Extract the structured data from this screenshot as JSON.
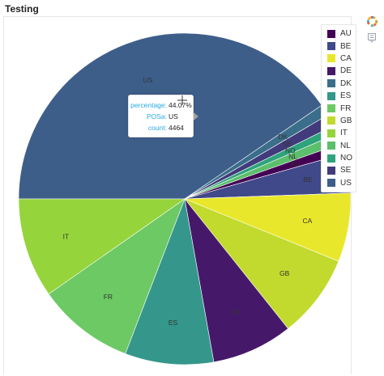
{
  "title": "Testing",
  "chart_data": {
    "type": "pie",
    "start_angle_deg": 180,
    "direction": "clockwise",
    "slices": [
      {
        "label": "US",
        "percentage": 44.07,
        "color": "#3e5e8a"
      },
      {
        "label": "DK",
        "percentage": 1.2,
        "color": "#3a6e8a"
      },
      {
        "label": "SE",
        "percentage": 1.3,
        "color": "#413b7c"
      },
      {
        "label": "NO",
        "percentage": 0.9,
        "color": "#2fa37b"
      },
      {
        "label": "NL",
        "percentage": 1.1,
        "color": "#5bbf6b"
      },
      {
        "label": "AU",
        "percentage": 1.1,
        "color": "#440154"
      },
      {
        "label": "BE",
        "percentage": 4.2,
        "color": "#404989"
      },
      {
        "label": "CA",
        "percentage": 7.3,
        "color": "#e9e72b"
      },
      {
        "label": "GB",
        "percentage": 8.9,
        "color": "#c2da2e"
      },
      {
        "label": "DE",
        "percentage": 8.6,
        "color": "#46186a"
      },
      {
        "label": "ES",
        "percentage": 9.4,
        "color": "#35978b"
      },
      {
        "label": "FR",
        "percentage": 10.3,
        "color": "#6cc964"
      },
      {
        "label": "IT",
        "percentage": 10.6,
        "color": "#96d43c"
      }
    ]
  },
  "legend": {
    "position": "top-right",
    "items": [
      {
        "label": "AU",
        "color": "#440154"
      },
      {
        "label": "BE",
        "color": "#404989"
      },
      {
        "label": "CA",
        "color": "#e9e72b"
      },
      {
        "label": "DE",
        "color": "#46186a"
      },
      {
        "label": "DK",
        "color": "#3a6e8a"
      },
      {
        "label": "ES",
        "color": "#35978b"
      },
      {
        "label": "FR",
        "color": "#6cc964"
      },
      {
        "label": "GB",
        "color": "#c2da2e"
      },
      {
        "label": "IT",
        "color": "#96d43c"
      },
      {
        "label": "NL",
        "color": "#5bbf6b"
      },
      {
        "label": "NO",
        "color": "#2fa37b"
      },
      {
        "label": "SE",
        "color": "#413b7c"
      },
      {
        "label": "US",
        "color": "#3e5e8a"
      }
    ]
  },
  "tooltip": {
    "rows": [
      {
        "key": "percentage:",
        "value": "44.07%"
      },
      {
        "key": "POSa:",
        "value": "US"
      },
      {
        "key": "count:",
        "value": "4464"
      }
    ]
  },
  "toolbar": {
    "logo_icon": "bokeh-logo-icon",
    "hover_icon": "hover-tool-icon"
  }
}
